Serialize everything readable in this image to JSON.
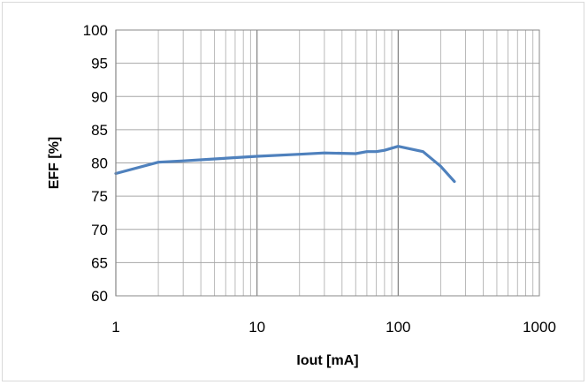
{
  "chart_data": {
    "type": "line",
    "xscale": "log",
    "xlabel": "Iout [mA]",
    "ylabel": "EFF  [%]",
    "xlim": [
      1,
      1000
    ],
    "ylim": [
      60,
      100
    ],
    "x_ticks": [
      1,
      10,
      100,
      1000
    ],
    "x_tick_labels": [
      "1",
      "10",
      "100",
      "1000"
    ],
    "y_ticks": [
      60,
      65,
      70,
      75,
      80,
      85,
      90,
      95,
      100
    ],
    "y_tick_labels": [
      "60",
      "65",
      "70",
      "75",
      "80",
      "85",
      "90",
      "95",
      "100"
    ],
    "grid": true,
    "legend": "none",
    "series": [
      {
        "color": "#4f81bd",
        "x": [
          1,
          2,
          3,
          5,
          10,
          20,
          30,
          50,
          60,
          70,
          80,
          100,
          150,
          200,
          250
        ],
        "y": [
          78.4,
          80.1,
          80.3,
          80.6,
          81.0,
          81.3,
          81.5,
          81.4,
          81.7,
          81.7,
          81.9,
          82.5,
          81.7,
          79.5,
          77.2
        ]
      }
    ]
  }
}
